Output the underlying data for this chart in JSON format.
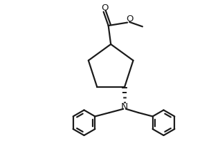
{
  "background": "#ffffff",
  "line_color": "#1a1a1a",
  "line_width": 1.6,
  "figsize": [
    3.18,
    2.36
  ],
  "dpi": 100,
  "xlim": [
    0,
    10
  ],
  "ylim": [
    0,
    10
  ]
}
